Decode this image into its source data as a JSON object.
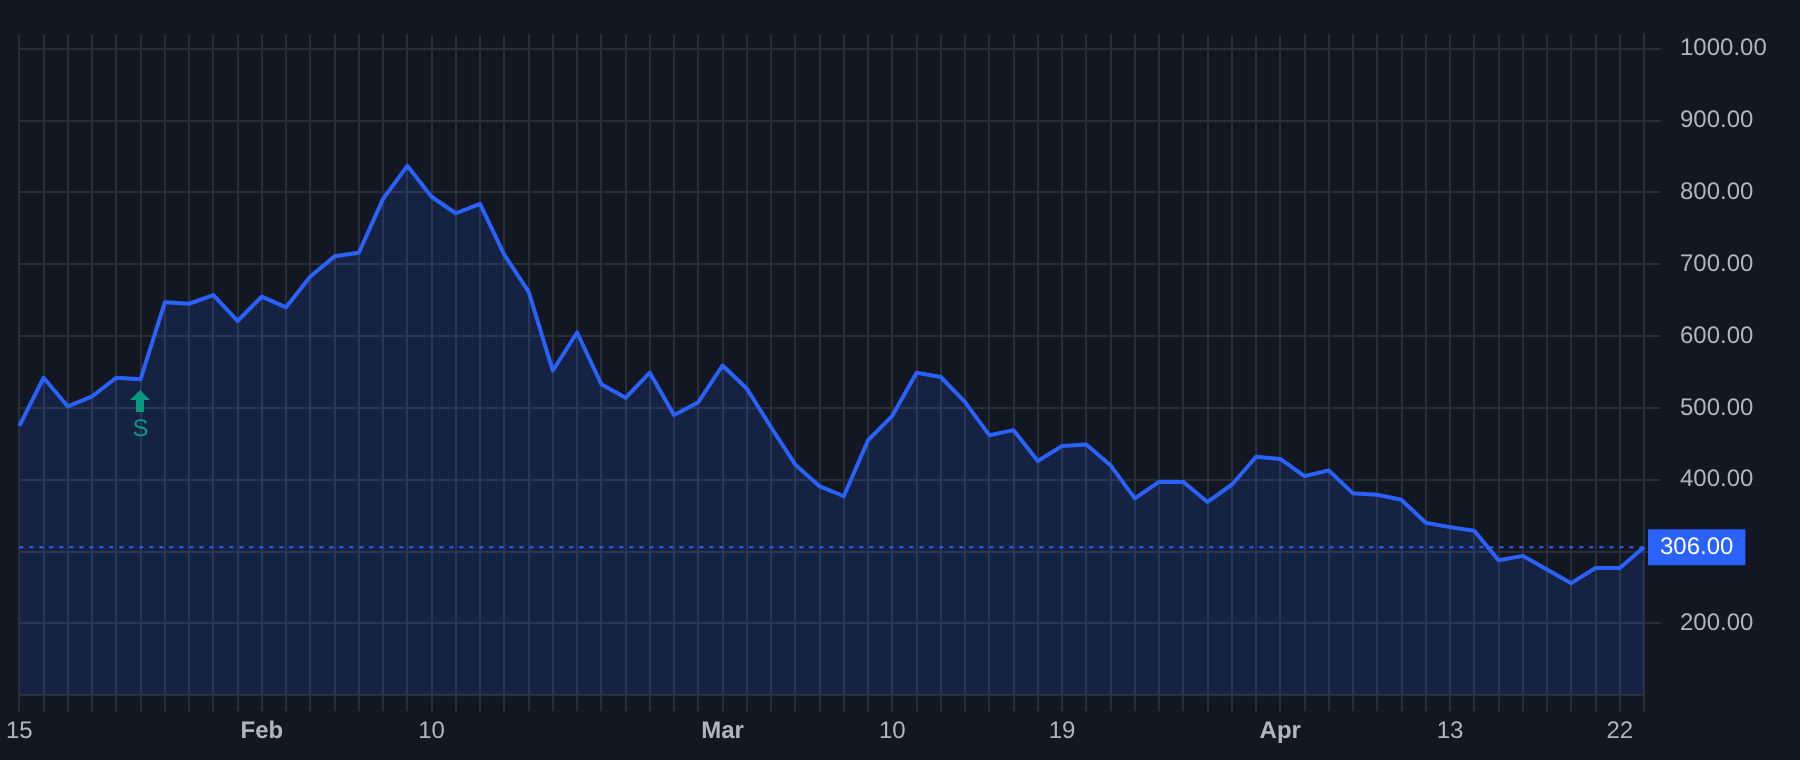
{
  "chart_data": {
    "type": "area",
    "categories": [
      "15",
      null,
      null,
      null,
      null,
      null,
      null,
      null,
      null,
      null,
      "Feb",
      null,
      null,
      null,
      null,
      null,
      null,
      "10",
      null,
      null,
      null,
      null,
      null,
      null,
      null,
      null,
      null,
      null,
      null,
      "Mar",
      null,
      null,
      null,
      null,
      null,
      null,
      "10",
      null,
      null,
      null,
      null,
      null,
      null,
      "19",
      null,
      null,
      null,
      null,
      null,
      null,
      null,
      null,
      "Apr",
      null,
      null,
      null,
      null,
      null,
      null,
      "13",
      null,
      null,
      null,
      null,
      null,
      null,
      "22",
      null
    ],
    "series": [
      {
        "color": "#2962ff",
        "values": [
          475,
          542,
          502,
          516,
          542,
          540,
          647,
          645,
          657,
          621,
          655,
          640,
          683,
          711,
          716,
          791,
          837,
          794,
          771,
          784,
          713,
          662,
          552,
          605,
          533,
          514,
          549,
          490,
          508,
          559,
          527,
          473,
          421,
          391,
          377,
          455,
          489,
          549,
          543,
          508,
          462,
          469,
          426,
          447,
          449,
          420,
          374,
          397,
          397,
          369,
          393,
          432,
          429,
          405,
          413,
          381,
          379,
          372,
          340,
          334,
          329,
          288,
          294,
          275,
          256,
          277,
          277,
          306
        ]
      }
    ],
    "ylim": [
      100,
      1020
    ],
    "yticks": [
      {
        "value": 200,
        "label": "200.00"
      },
      {
        "value": 300,
        "label": null
      },
      {
        "value": 400,
        "label": "400.00"
      },
      {
        "value": 500,
        "label": "500.00"
      },
      {
        "value": 600,
        "label": "600.00"
      },
      {
        "value": 700,
        "label": "700.00"
      },
      {
        "value": 800,
        "label": "800.00"
      },
      {
        "value": 900,
        "label": "900.00"
      },
      {
        "value": 1000,
        "label": "1000.00"
      }
    ],
    "ref_lines": [
      {
        "axis": "y",
        "value": 306,
        "label": "306.00",
        "color": "#2962ff",
        "line_style": "dotted"
      }
    ],
    "annotations": [
      "S"
    ],
    "grid": true,
    "legend": false,
    "marker": "none",
    "line_style": "solid"
  }
}
